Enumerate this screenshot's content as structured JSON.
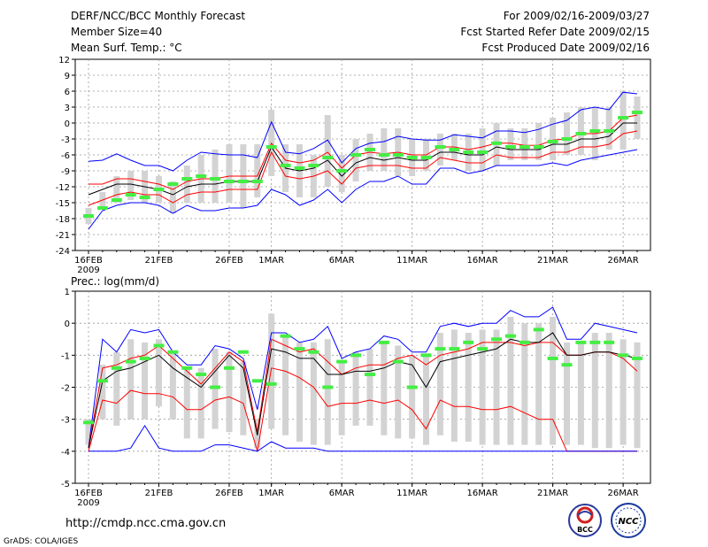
{
  "header": {
    "title": "DERF/NCC/BCC Monthly Forecast",
    "member_size": "Member Size=40",
    "variable": "Mean Surf. Temp.: °C",
    "period": "For 2009/02/16-2009/03/27",
    "fcst_started": "Fcst Started Refer Date 2009/02/15",
    "fcst_produced": "Fcst Produced Date 2009/02/16"
  },
  "footer": {
    "url": "http://cmdp.ncc.cma.gov.cn",
    "grads": "GrADS: COLA/IGES",
    "logo_left_text": "BCC",
    "logo_right_text": "NCC"
  },
  "chart_data": [
    {
      "type": "line",
      "title": "Mean Surf. Temp.: °C",
      "xlabel": "",
      "ylabel": "°C",
      "ylim": [
        -24,
        12
      ],
      "yticks": [
        "12",
        "9",
        "6",
        "3",
        "0",
        "-3",
        "-6",
        "-9",
        "-12",
        "-15",
        "-18",
        "-21",
        "-24"
      ],
      "ytick_values": [
        12,
        9,
        6,
        3,
        0,
        -3,
        -6,
        -9,
        -12,
        -15,
        -18,
        -21,
        -24
      ],
      "x_labels": [
        {
          "day": 1,
          "label": "16FEB"
        },
        {
          "day": 6,
          "label": "21FEB"
        },
        {
          "day": 11,
          "label": "26FEB"
        },
        {
          "day": 14,
          "label": "1MAR"
        },
        {
          "day": 19,
          "label": "6MAR"
        },
        {
          "day": 24,
          "label": "11MAR"
        },
        {
          "day": 29,
          "label": "16MAR"
        },
        {
          "day": 34,
          "label": "21MAR"
        },
        {
          "day": 39,
          "label": "26MAR"
        }
      ],
      "year_label": "2009",
      "days": [
        1,
        2,
        3,
        4,
        5,
        6,
        7,
        8,
        9,
        10,
        11,
        12,
        13,
        14,
        15,
        16,
        17,
        18,
        19,
        20,
        21,
        22,
        23,
        24,
        25,
        26,
        27,
        28,
        29,
        30,
        31,
        32,
        33,
        34,
        35,
        36,
        37,
        38,
        39,
        40
      ],
      "series": [
        {
          "name": "max",
          "color": "#0000ff",
          "values": [
            -7.2,
            -7,
            -5.8,
            -7,
            -8,
            -8,
            -9,
            -7,
            -5.5,
            -5.8,
            -6,
            -6,
            -6.5,
            0.2,
            -5.5,
            -5.8,
            -4.8,
            -3.2,
            -7.5,
            -4.8,
            -3.8,
            -3.5,
            -2.5,
            -3,
            -3.2,
            -3.2,
            -2.2,
            -2.5,
            -2.8,
            -1.5,
            -1.5,
            -1.8,
            -1.2,
            -0.2,
            0.5,
            2.5,
            3,
            2.5,
            5.8,
            5.5
          ]
        },
        {
          "name": "upper",
          "color": "#ff0000",
          "values": [
            -11.5,
            -11.5,
            -10.5,
            -10.5,
            -11,
            -11.5,
            -12.5,
            -11,
            -10.5,
            -10.5,
            -10,
            -10,
            -10,
            -3.8,
            -7,
            -7.5,
            -7,
            -5.5,
            -8.5,
            -6,
            -5.5,
            -5.8,
            -5.5,
            -6,
            -6,
            -4.5,
            -4.5,
            -5,
            -4.5,
            -3.8,
            -3.8,
            -4.2,
            -4.2,
            -3.2,
            -3,
            -2,
            -2,
            -1.5,
            1,
            1.5
          ]
        },
        {
          "name": "mean",
          "color": "#000000",
          "values": [
            -13.5,
            -12.5,
            -11.5,
            -11.5,
            -12,
            -12.5,
            -13.5,
            -12,
            -11.5,
            -11.5,
            -11,
            -11,
            -11,
            -4.5,
            -8.5,
            -9,
            -8.5,
            -7,
            -10,
            -7.5,
            -6.5,
            -7,
            -6.5,
            -7,
            -7,
            -5.5,
            -5.5,
            -6,
            -6,
            -4.5,
            -5,
            -5,
            -5,
            -4,
            -4,
            -3,
            -3,
            -2.5,
            0,
            0
          ]
        },
        {
          "name": "lower",
          "color": "#ff0000",
          "values": [
            -15.5,
            -14.5,
            -13.5,
            -13,
            -13.5,
            -13.5,
            -15,
            -13.5,
            -13,
            -13,
            -12.5,
            -12.5,
            -12.5,
            -5.5,
            -10,
            -10.5,
            -10,
            -9,
            -11.5,
            -8.5,
            -8,
            -8,
            -8,
            -8.5,
            -8.5,
            -6.5,
            -7,
            -7.5,
            -7.5,
            -6,
            -6.5,
            -6.5,
            -6.5,
            -5.5,
            -5.5,
            -4.5,
            -4.5,
            -4,
            -2,
            -1.5
          ]
        },
        {
          "name": "min",
          "color": "#0000ff",
          "values": [
            -20,
            -16.5,
            -15.5,
            -15,
            -15,
            -15.5,
            -17,
            -15.5,
            -16.5,
            -16.5,
            -16,
            -16,
            -15.5,
            -12.5,
            -13.5,
            -15.5,
            -14.5,
            -12.5,
            -15,
            -12.5,
            -11,
            -11,
            -10,
            -11.5,
            -11.5,
            -8.5,
            -8.5,
            -9.5,
            -9,
            -8,
            -8,
            -8,
            -8,
            -7.5,
            -8,
            -7,
            -6.5,
            -6,
            -5.5,
            -5
          ]
        }
      ],
      "boxes_low": [
        -19,
        -16,
        -15,
        -14.5,
        -15,
        -15,
        -17,
        -15,
        -15,
        -15,
        -15,
        -16,
        -14,
        -10,
        -13,
        -14,
        -14,
        -12,
        -13,
        -11,
        -9,
        -9,
        -10,
        -10,
        -9,
        -8,
        -7,
        -9,
        -9,
        -8,
        -7,
        -7,
        -7,
        -7,
        -6,
        -6,
        -7,
        -5,
        -5,
        -3
      ],
      "boxes_high": [
        -16,
        -13,
        -10,
        -9,
        -9,
        -10,
        -11,
        -8,
        -6,
        -5,
        -4,
        -4,
        -4,
        2.5,
        -4,
        -4,
        -6,
        1.5,
        -6,
        -3,
        -2,
        -1,
        -1,
        -3,
        -3,
        -2,
        -2,
        -2,
        -1,
        0,
        -1,
        -1,
        0,
        1,
        2,
        3,
        3,
        3,
        6,
        5
      ],
      "obs": [
        -17.5,
        -16,
        -14.5,
        -13.5,
        -14,
        -12.5,
        -11.5,
        -10.5,
        -10,
        -10.5,
        -11,
        -11,
        -11,
        -4.5,
        -8,
        -8.5,
        -8,
        -6.5,
        -9,
        -6,
        -5,
        -6,
        -6,
        -6.5,
        -6.5,
        -4.5,
        -5,
        -5.5,
        -5.5,
        -3.8,
        -4.5,
        -4.5,
        -4.5,
        -3.5,
        -3,
        -2,
        -1.5,
        -1.5,
        1,
        2
      ]
    },
    {
      "type": "line",
      "title": "Prec.: log(mm/d)",
      "xlabel": "",
      "ylabel": "log(mm/d)",
      "ylim": [
        -5,
        1
      ],
      "yticks": [
        "1",
        "0",
        "-1",
        "-2",
        "-3",
        "-4",
        "-5"
      ],
      "ytick_values": [
        1,
        0,
        -1,
        -2,
        -3,
        -4,
        -5
      ],
      "x_labels": [
        {
          "day": 1,
          "label": "16FEB"
        },
        {
          "day": 6,
          "label": "21FEB"
        },
        {
          "day": 11,
          "label": "26FEB"
        },
        {
          "day": 14,
          "label": "1MAR"
        },
        {
          "day": 19,
          "label": "6MAR"
        },
        {
          "day": 24,
          "label": "11MAR"
        },
        {
          "day": 29,
          "label": "16MAR"
        },
        {
          "day": 34,
          "label": "21MAR"
        },
        {
          "day": 39,
          "label": "26MAR"
        }
      ],
      "year_label": "2009",
      "days": [
        1,
        2,
        3,
        4,
        5,
        6,
        7,
        8,
        9,
        10,
        11,
        12,
        13,
        14,
        15,
        16,
        17,
        18,
        19,
        20,
        21,
        22,
        23,
        24,
        25,
        26,
        27,
        28,
        29,
        30,
        31,
        32,
        33,
        34,
        35,
        36,
        37,
        38,
        39,
        40
      ],
      "series": [
        {
          "name": "max",
          "color": "#0000ff",
          "values": [
            -3.9,
            -0.5,
            -0.9,
            -0.2,
            -0.3,
            -0.2,
            -0.9,
            -1.3,
            -1.3,
            -0.7,
            -0.8,
            -1.1,
            -2.7,
            -0.3,
            -0.3,
            -0.6,
            -0.5,
            -0.1,
            -1.1,
            -0.9,
            -0.8,
            -0.4,
            -0.5,
            -0.9,
            -0.9,
            -0.1,
            0.0,
            -0.1,
            0.0,
            0.0,
            0.4,
            0.2,
            0.2,
            0.5,
            -0.5,
            -0.5,
            0.0,
            -0.1,
            -0.2,
            -0.3
          ]
        },
        {
          "name": "upper",
          "color": "#ff0000",
          "values": [
            -3.9,
            -1.4,
            -1.3,
            -1.1,
            -1.0,
            -0.7,
            -1.1,
            -1.5,
            -1.9,
            -1.4,
            -0.9,
            -1.2,
            -3.4,
            -0.5,
            -0.7,
            -0.9,
            -0.8,
            -1.2,
            -1.6,
            -1.4,
            -1.3,
            -1.3,
            -1.1,
            -1.0,
            -1.3,
            -1.0,
            -0.9,
            -0.8,
            -0.6,
            -0.6,
            -0.6,
            -0.7,
            -0.6,
            -0.6,
            -1.0,
            -1.0,
            -0.9,
            -0.9,
            -1.1,
            -1.5
          ]
        },
        {
          "name": "mean",
          "color": "#000000",
          "values": [
            -3.9,
            -1.8,
            -1.5,
            -1.4,
            -1.2,
            -1.0,
            -1.4,
            -1.7,
            -2.0,
            -1.5,
            -1.0,
            -1.4,
            -3.5,
            -0.8,
            -0.9,
            -1.1,
            -1.1,
            -1.6,
            -1.6,
            -1.5,
            -1.5,
            -1.4,
            -1.2,
            -1.3,
            -2.0,
            -1.2,
            -1.1,
            -1.0,
            -0.9,
            -0.8,
            -0.5,
            -0.6,
            -0.6,
            -0.3,
            -1.0,
            -1.0,
            -0.9,
            -0.9,
            -1.0,
            -1.1
          ]
        },
        {
          "name": "lower",
          "color": "#ff0000",
          "values": [
            -4.0,
            -2.4,
            -2.5,
            -2.1,
            -2.2,
            -2.2,
            -2.3,
            -2.7,
            -2.7,
            -2.4,
            -2.3,
            -2.5,
            -4.0,
            -1.4,
            -1.5,
            -1.7,
            -2.0,
            -2.6,
            -2.5,
            -2.5,
            -2.4,
            -2.5,
            -2.4,
            -2.7,
            -3.3,
            -2.4,
            -2.6,
            -2.6,
            -2.7,
            -2.7,
            -2.6,
            -2.8,
            -3.0,
            -3.0,
            -4.0,
            -4.0,
            -4.0,
            -4.0,
            -4.0,
            -4.0
          ]
        },
        {
          "name": "min",
          "color": "#0000ff",
          "values": [
            -4.0,
            -4.0,
            -4.0,
            -3.9,
            -3.2,
            -3.9,
            -4.0,
            -4.0,
            -4.0,
            -3.8,
            -3.8,
            -3.9,
            -4.0,
            -3.7,
            -3.9,
            -3.9,
            -3.9,
            -4.0,
            -4.0,
            -4.0,
            -4.0,
            -4.0,
            -4.0,
            -4.0,
            -4.0,
            -4.0,
            -4.0,
            -4.0,
            -4.0,
            -4.0,
            -4.0,
            -4.0,
            -4.0,
            -4.0,
            -4.0,
            -4.0,
            -4.0,
            -4.0,
            -4.0,
            -4.0
          ]
        }
      ],
      "boxes_low": [
        -3.8,
        -3.0,
        -3.2,
        -3.0,
        -3.0,
        -2.6,
        -3.0,
        -3.6,
        -3.6,
        -3.3,
        -3.4,
        -3.5,
        -3.9,
        -3.3,
        -3.5,
        -3.7,
        -3.8,
        -3.8,
        -3.5,
        -3.2,
        -3.2,
        -3.5,
        -3.6,
        -3.6,
        -3.8,
        -3.5,
        -3.7,
        -3.7,
        -3.8,
        -3.8,
        -3.8,
        -3.8,
        -3.8,
        -3.8,
        -3.8,
        -3.8,
        -3.9,
        -3.9,
        -3.8,
        -3.9
      ],
      "boxes_high": [
        -3.0,
        -1.3,
        -0.9,
        -0.5,
        -0.6,
        -0.5,
        -0.9,
        -1.4,
        -1.4,
        -0.8,
        -0.9,
        -1.2,
        -3.0,
        0.3,
        -0.4,
        -0.6,
        -0.6,
        -0.5,
        -1.2,
        -0.9,
        -0.8,
        -0.6,
        -0.7,
        -1.0,
        -1.0,
        -0.3,
        -0.2,
        -0.3,
        -0.2,
        -0.2,
        0.2,
        0.0,
        0.0,
        0.2,
        -0.6,
        -0.6,
        -0.3,
        -0.3,
        -0.5,
        -0.6
      ],
      "obs": [
        -3.1,
        -1.8,
        -1.4,
        -1.2,
        -1.1,
        -0.7,
        -0.9,
        -1.4,
        -1.6,
        -2.0,
        -1.4,
        -0.9,
        -1.8,
        -1.9,
        -0.4,
        -0.8,
        -0.9,
        -2.0,
        -1.2,
        -1.0,
        -1.6,
        -0.6,
        -1.2,
        -2.0,
        -1.0,
        -0.8,
        -0.8,
        -0.6,
        -0.8,
        -0.5,
        -0.4,
        -0.6,
        -0.2,
        -1.1,
        -1.3,
        -0.6,
        -0.6,
        -0.6,
        -1.0,
        -1.1
      ]
    }
  ]
}
